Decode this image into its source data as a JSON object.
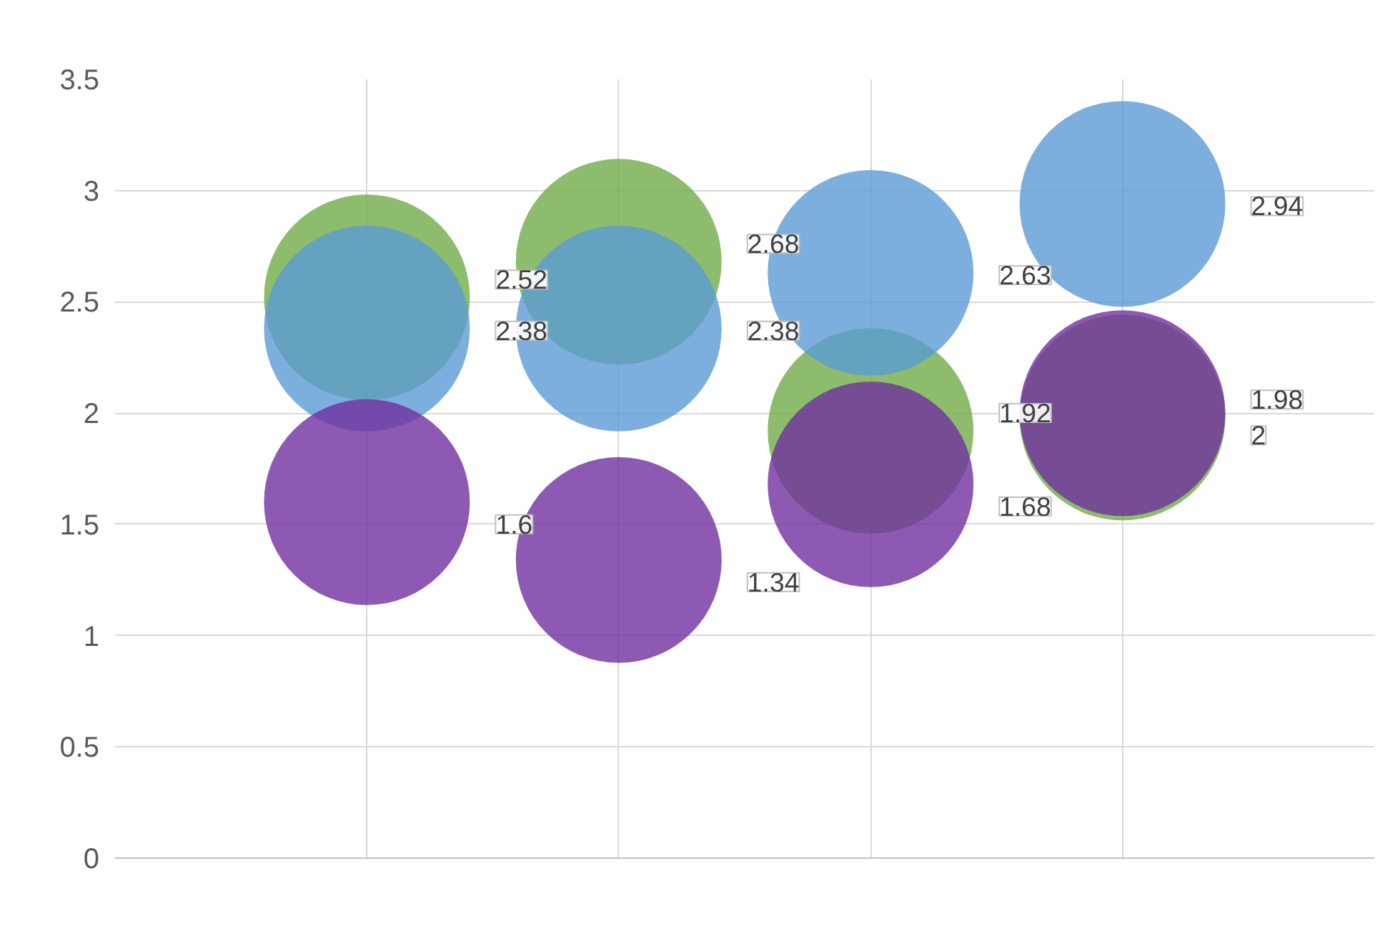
{
  "chart_data": {
    "type": "bubble",
    "categories": [
      null,
      null,
      null,
      null
    ],
    "series": [
      {
        "color": "#70ad47",
        "values": [
          2.52,
          2.68,
          1.92,
          1.98
        ],
        "sizes": [
          1,
          1,
          1,
          1
        ],
        "value_labels": [
          "2.52",
          "2.68",
          "1.92",
          "1.98"
        ]
      },
      {
        "color": "#5b9bd5",
        "values": [
          2.38,
          2.38,
          2.63,
          2.94
        ],
        "sizes": [
          1,
          1,
          1,
          1
        ],
        "value_labels": [
          "2.38",
          "2.38",
          "2.63",
          "2.94"
        ]
      },
      {
        "color": "#7030a0",
        "values": [
          1.6,
          1.34,
          1.68,
          2
        ],
        "sizes": [
          1,
          1,
          1,
          1
        ],
        "value_labels": [
          "1.6",
          "1.34",
          "1.68",
          "2"
        ]
      }
    ],
    "ylim": [
      0,
      3.5
    ],
    "yticks": [
      0,
      0.5,
      1,
      1.5,
      2,
      2.5,
      3,
      3.5
    ],
    "grid": true,
    "tick_labels": "y"
  }
}
